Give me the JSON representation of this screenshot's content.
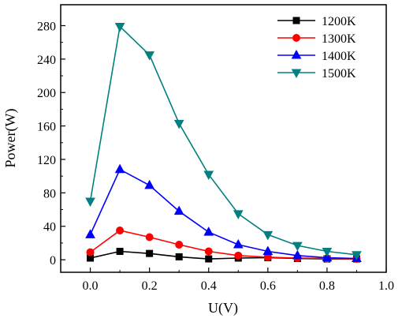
{
  "chart_data": {
    "type": "line",
    "title": "",
    "xlabel": "U(V)",
    "ylabel": "Power(W)",
    "xlim": [
      -0.1,
      1.0
    ],
    "ylim": [
      -15,
      305
    ],
    "xticks": [
      0.0,
      0.2,
      0.4,
      0.6,
      0.8,
      1.0
    ],
    "xtick_labels": [
      "0.0",
      "0.2",
      "0.4",
      "0.6",
      "0.8",
      "1.0"
    ],
    "yticks": [
      0,
      40,
      80,
      120,
      160,
      200,
      240,
      280
    ],
    "ytick_labels": [
      "0",
      "40",
      "80",
      "120",
      "160",
      "200",
      "240",
      "280"
    ],
    "grid": false,
    "legend_position": "top-right",
    "x": [
      0.0,
      0.1,
      0.2,
      0.3,
      0.4,
      0.5,
      0.6,
      0.7,
      0.8,
      0.9
    ],
    "series": [
      {
        "name": "1200K",
        "color": "#000000",
        "marker": "square",
        "values": [
          2,
          10,
          7.5,
          3.5,
          1,
          2,
          2.5,
          1.5,
          1,
          1
        ]
      },
      {
        "name": "1300K",
        "color": "#ff0000",
        "marker": "circle",
        "values": [
          9,
          35,
          27,
          18,
          10,
          5,
          3,
          2,
          1.5,
          1
        ]
      },
      {
        "name": "1400K",
        "color": "#0000ff",
        "marker": "triangle-up",
        "values": [
          30,
          108,
          89,
          58,
          33,
          18,
          10,
          5,
          2.5,
          1.5
        ]
      },
      {
        "name": "1500K",
        "color": "#008080",
        "marker": "triangle-down",
        "values": [
          70,
          279,
          245,
          163,
          102,
          55,
          30,
          17,
          10,
          6
        ]
      }
    ]
  }
}
